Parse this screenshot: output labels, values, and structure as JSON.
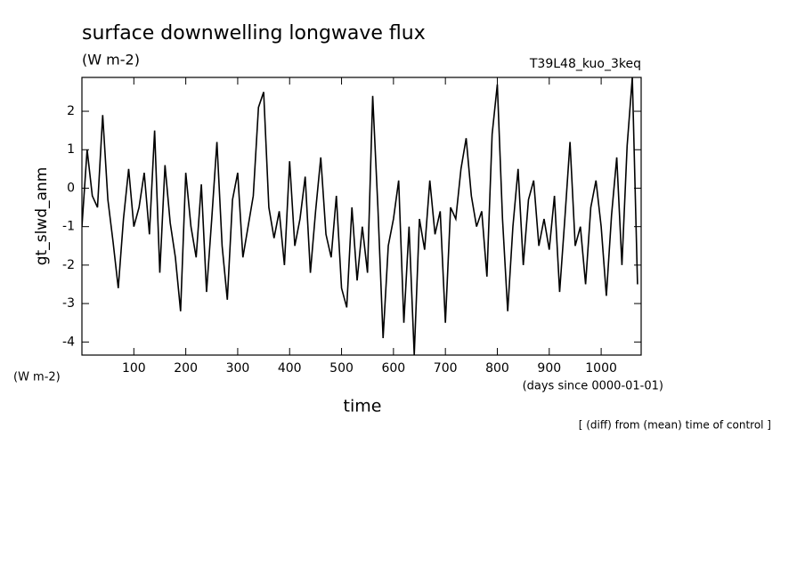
{
  "chart_data": {
    "type": "line",
    "title": "surface downwelling longwave flux",
    "subtitle": "(W m-2)",
    "run_label": "T39L48_kuo_3keq",
    "y_label": "gt_slwd_anm",
    "y_units": "(W m-2)",
    "x_label": "time",
    "x_units": "(days since 0000-01-01)",
    "note": "[ (diff) from (mean) time of control ]",
    "x": [
      0,
      10,
      20,
      30,
      40,
      50,
      60,
      70,
      80,
      90,
      100,
      110,
      120,
      130,
      140,
      150,
      160,
      170,
      180,
      190,
      200,
      210,
      220,
      230,
      240,
      250,
      260,
      270,
      280,
      290,
      300,
      310,
      320,
      330,
      340,
      350,
      360,
      370,
      380,
      390,
      400,
      410,
      420,
      430,
      440,
      450,
      460,
      470,
      480,
      490,
      500,
      510,
      520,
      530,
      540,
      550,
      560,
      570,
      580,
      590,
      600,
      610,
      620,
      630,
      640,
      650,
      660,
      670,
      680,
      690,
      700,
      710,
      720,
      730,
      740,
      750,
      760,
      770,
      780,
      790,
      800,
      810,
      820,
      830,
      840,
      850,
      860,
      870,
      880,
      890,
      900,
      910,
      920,
      930,
      940,
      950,
      960,
      970,
      980,
      990,
      1000,
      1010,
      1020,
      1030,
      1040,
      1050,
      1060,
      1070
    ],
    "series": [
      {
        "name": "gt_slwd_anm",
        "color": "#000000",
        "values": [
          -1.0,
          1.0,
          -0.2,
          -0.5,
          1.9,
          -0.3,
          -1.4,
          -2.6,
          -0.8,
          0.5,
          -1.0,
          -0.5,
          0.4,
          -1.2,
          1.5,
          -2.2,
          0.6,
          -0.9,
          -1.8,
          -3.2,
          0.4,
          -1.0,
          -1.8,
          0.1,
          -2.7,
          -0.8,
          1.2,
          -1.5,
          -2.9,
          -0.3,
          0.4,
          -1.8,
          -1.0,
          -0.2,
          2.1,
          2.5,
          -0.5,
          -1.3,
          -0.6,
          -2.0,
          0.7,
          -1.5,
          -0.8,
          0.3,
          -2.2,
          -0.6,
          0.8,
          -1.2,
          -1.8,
          -0.2,
          -2.6,
          -3.1,
          -0.5,
          -2.4,
          -1.0,
          -2.2,
          2.4,
          -0.5,
          -3.9,
          -1.5,
          -0.8,
          0.2,
          -3.5,
          -1.0,
          -4.34,
          -0.8,
          -1.6,
          0.2,
          -1.2,
          -0.6,
          -3.5,
          -0.5,
          -0.8,
          0.5,
          1.3,
          -0.2,
          -1.0,
          -0.6,
          -2.3,
          1.4,
          2.7,
          -0.8,
          -3.2,
          -1.0,
          0.5,
          -2.0,
          -0.3,
          0.2,
          -1.5,
          -0.8,
          -1.6,
          -0.2,
          -2.7,
          -0.8,
          1.2,
          -1.5,
          -1.0,
          -2.5,
          -0.5,
          0.2,
          -1.0,
          -2.8,
          -0.7,
          0.8,
          -2.0,
          1.1,
          2.88,
          -2.5
        ]
      }
    ],
    "xlim": [
      0,
      1077
    ],
    "xticks": [
      100,
      200,
      300,
      400,
      500,
      600,
      700,
      800,
      900,
      1000
    ],
    "ylim": [
      -4.34,
      2.88
    ],
    "yticks": [
      2,
      1,
      0,
      -1,
      -2,
      -3,
      -4
    ]
  }
}
